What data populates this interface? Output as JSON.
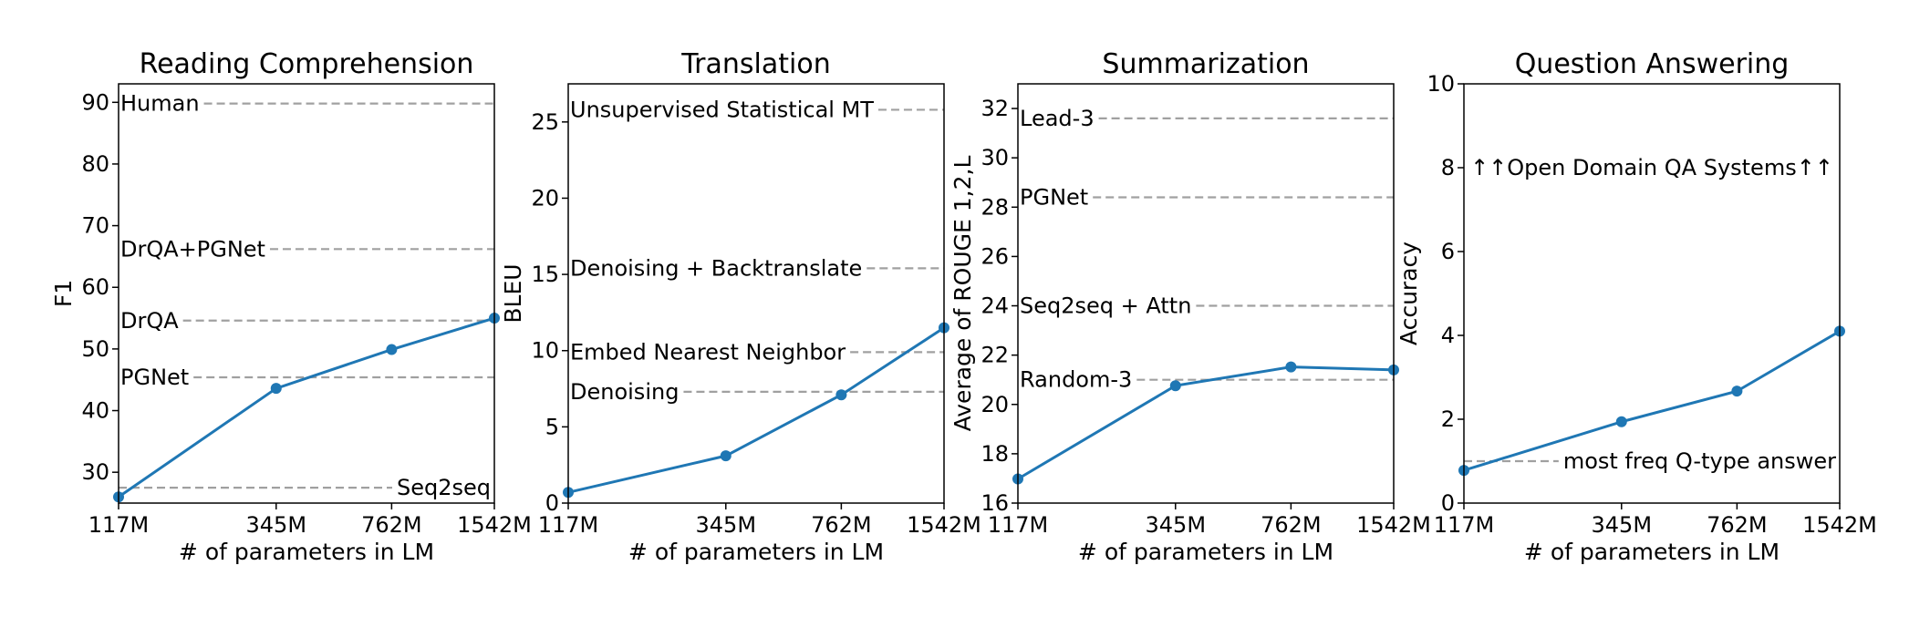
{
  "chart_data": [
    {
      "type": "line",
      "title": "Reading Comprehension",
      "xlabel": "# of parameters in LM",
      "ylabel": "F1",
      "x_scale": "log",
      "x": [
        117,
        345,
        762,
        1542
      ],
      "x_tick_labels": [
        "117M",
        "345M",
        "762M",
        "1542M"
      ],
      "xlim": [
        117,
        1542
      ],
      "ylim": [
        25,
        93
      ],
      "yticks": [
        30,
        40,
        50,
        60,
        70,
        80,
        90
      ],
      "series": [
        {
          "values": [
            26.0,
            43.6,
            49.9,
            55.0
          ]
        }
      ],
      "reference_lines": [
        {
          "label": "Human",
          "value": 89.8,
          "label_pos": "left"
        },
        {
          "label": "DrQA+PGNet",
          "value": 66.2,
          "label_pos": "left"
        },
        {
          "label": "DrQA",
          "value": 54.6,
          "label_pos": "left"
        },
        {
          "label": "PGNet",
          "value": 45.4,
          "label_pos": "left"
        },
        {
          "label": "Seq2seq",
          "value": 27.5,
          "label_pos": "right"
        }
      ],
      "grid": false
    },
    {
      "type": "line",
      "title": "Translation",
      "xlabel": "# of parameters in LM",
      "ylabel": "BLEU",
      "x_scale": "log",
      "x": [
        117,
        345,
        762,
        1542
      ],
      "x_tick_labels": [
        "117M",
        "345M",
        "762M",
        "1542M"
      ],
      "xlim": [
        117,
        1542
      ],
      "ylim": [
        0,
        27.5
      ],
      "yticks": [
        0,
        5,
        10,
        15,
        20,
        25
      ],
      "series": [
        {
          "values": [
            0.7,
            3.1,
            7.1,
            11.5
          ]
        }
      ],
      "reference_lines": [
        {
          "label": "Unsupervised Statistical MT",
          "value": 25.8,
          "label_pos": "left"
        },
        {
          "label": "Denoising + Backtranslate",
          "value": 15.4,
          "label_pos": "left"
        },
        {
          "label": "Embed Nearest Neighbor",
          "value": 9.9,
          "label_pos": "left"
        },
        {
          "label": "Denoising",
          "value": 7.3,
          "label_pos": "left"
        }
      ],
      "grid": false
    },
    {
      "type": "line",
      "title": "Summarization",
      "xlabel": "# of parameters in LM",
      "ylabel": "Average of ROUGE 1,2,L",
      "x_scale": "log",
      "x": [
        117,
        345,
        762,
        1542
      ],
      "x_tick_labels": [
        "117M",
        "345M",
        "762M",
        "1542M"
      ],
      "xlim": [
        117,
        1542
      ],
      "ylim": [
        16,
        33
      ],
      "yticks": [
        16,
        18,
        20,
        22,
        24,
        26,
        28,
        30,
        32
      ],
      "series": [
        {
          "values": [
            16.98,
            20.76,
            21.52,
            21.4
          ]
        }
      ],
      "reference_lines": [
        {
          "label": "Lead-3",
          "value": 31.6,
          "label_pos": "left"
        },
        {
          "label": "PGNet",
          "value": 28.4,
          "label_pos": "left"
        },
        {
          "label": "Seq2seq + Attn",
          "value": 24.0,
          "label_pos": "left"
        },
        {
          "label": "Random-3",
          "value": 21.0,
          "label_pos": "left"
        }
      ],
      "grid": false
    },
    {
      "type": "line",
      "title": "Question Answering",
      "xlabel": "# of parameters in LM",
      "ylabel": "Accuracy",
      "x_scale": "log",
      "x": [
        117,
        345,
        762,
        1542
      ],
      "x_tick_labels": [
        "117M",
        "345M",
        "762M",
        "1542M"
      ],
      "xlim": [
        117,
        1542
      ],
      "ylim": [
        0,
        10
      ],
      "yticks": [
        0,
        2,
        4,
        6,
        8,
        10
      ],
      "series": [
        {
          "values": [
            0.78,
            1.94,
            2.67,
            4.1
          ]
        }
      ],
      "reference_lines": [
        {
          "label": "most freq Q-type answer",
          "value": 1.0,
          "label_pos": "right"
        }
      ],
      "annotations": [
        {
          "text": "↑↑Open Domain QA Systems↑↑",
          "y": 8.0
        }
      ],
      "grid": false
    }
  ]
}
